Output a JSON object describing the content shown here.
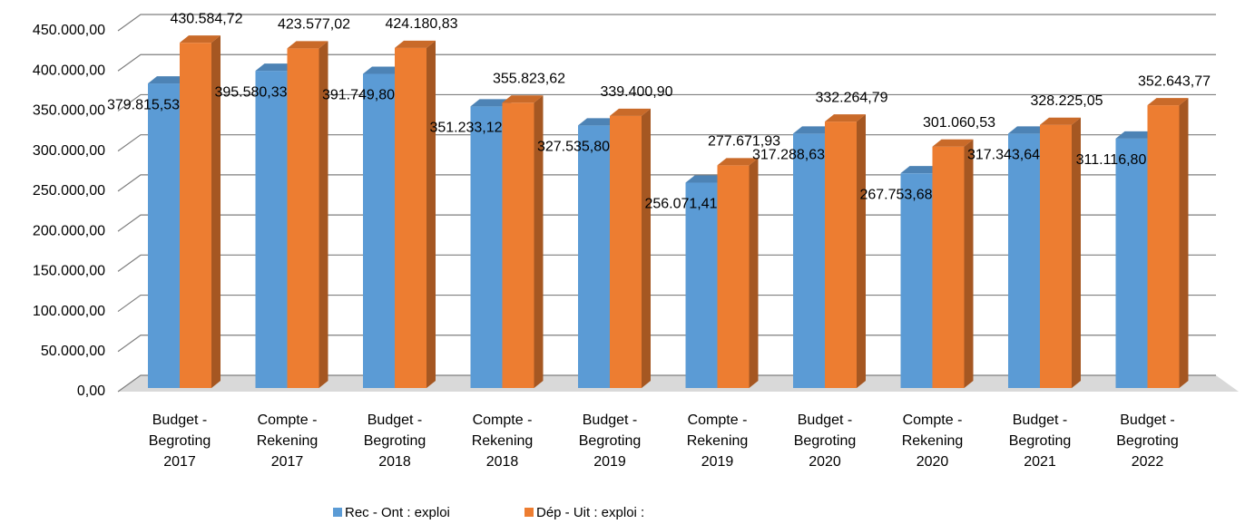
{
  "chart_data": {
    "type": "bar3d",
    "categories": [
      "Budget - Begroting 2017",
      "Compte - Rekening 2017",
      "Budget - Begroting 2018",
      "Compte - Rekening 2018",
      "Budget - Begroting 2019",
      "Compte - Rekening 2019",
      "Budget - Begroting 2020",
      "Compte - Rekening 2020",
      "Budget - Begroting 2021",
      "Budget - Begroting 2022"
    ],
    "series": [
      {
        "name": "Rec - Ont : exploi",
        "color": "#5b9bd5",
        "values": [
          379815.53,
          395580.33,
          391749.8,
          351233.12,
          327535.8,
          256071.41,
          317288.63,
          267753.68,
          317343.64,
          311116.8
        ],
        "value_labels": [
          "379.815,53",
          "395.580,33",
          "391.749,80",
          "351.233,12",
          "327.535,80",
          "256.071,41",
          "317.288,63",
          "267.753,68",
          "317.343,64",
          "311.116,80"
        ]
      },
      {
        "name": "Dép - Uit : exploi :",
        "color": "#ed7d31",
        "values": [
          430584.72,
          423577.02,
          424180.83,
          355823.62,
          339400.9,
          277671.93,
          332264.79,
          301060.53,
          328225.05,
          352643.77
        ],
        "value_labels": [
          "430.584,72",
          "423.577,02",
          "424.180,83",
          "355.823,62",
          "339.400,90",
          "277.671,93",
          "332.264,79",
          "301.060,53",
          "328.225,05",
          "352.643,77"
        ]
      }
    ],
    "ylim": [
      0,
      450000
    ],
    "yticks": [
      {
        "value": 0,
        "label": "0,00"
      },
      {
        "value": 50000,
        "label": "50.000,00"
      },
      {
        "value": 100000,
        "label": "100.000,00"
      },
      {
        "value": 150000,
        "label": "150.000,00"
      },
      {
        "value": 200000,
        "label": "200.000,00"
      },
      {
        "value": 250000,
        "label": "250.000,00"
      },
      {
        "value": 300000,
        "label": "300.000,00"
      },
      {
        "value": 350000,
        "label": "350.000,00"
      },
      {
        "value": 400000,
        "label": "400.000,00"
      },
      {
        "value": 450000,
        "label": "450.000,00"
      }
    ],
    "grid": true,
    "legend": "bottom"
  }
}
